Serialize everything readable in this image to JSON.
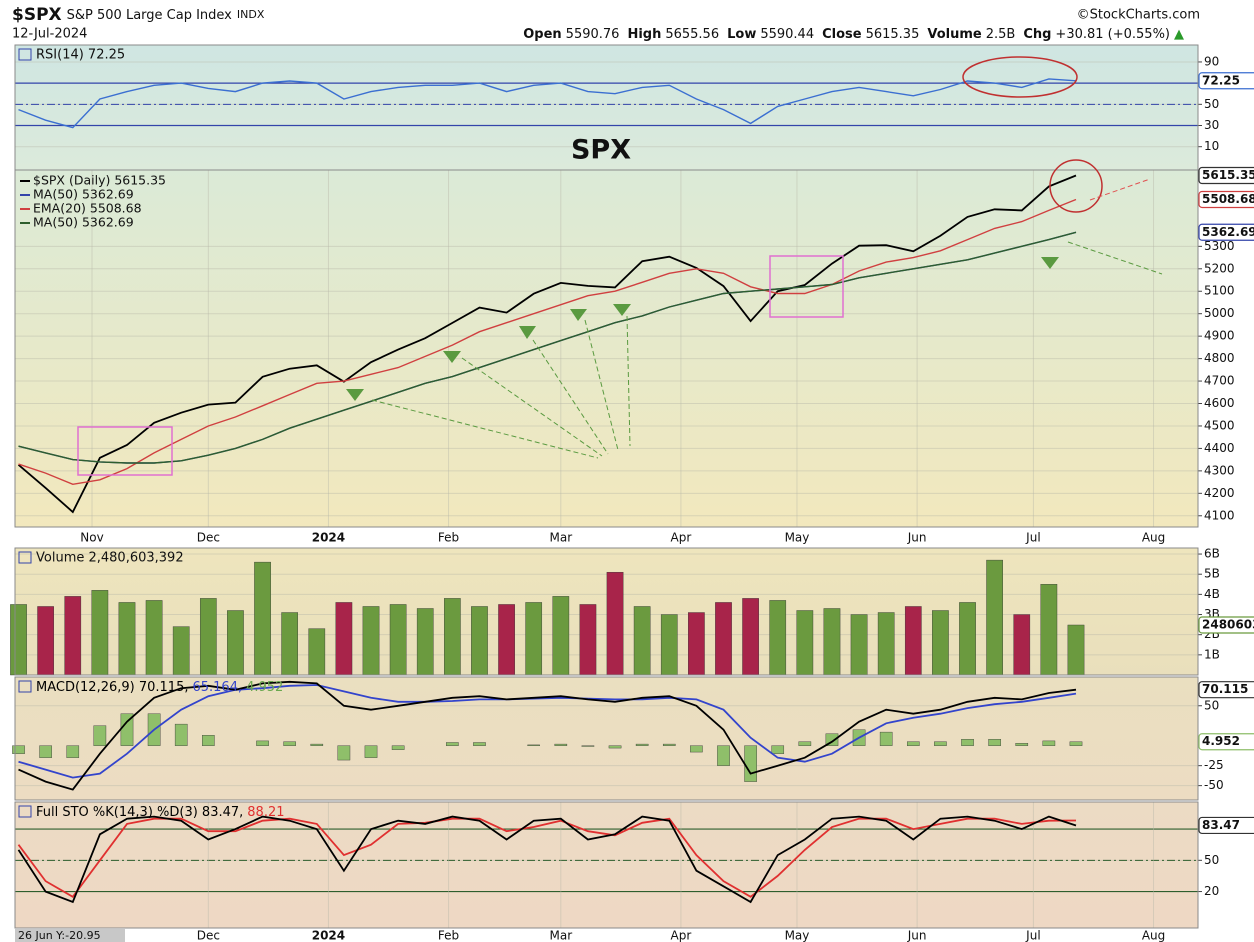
{
  "header": {
    "symbol": "$SPX",
    "name": "S&P 500 Large Cap Index",
    "exchange": "INDX",
    "date": "12-Jul-2024",
    "brand": "©StockCharts.com",
    "quote": [
      [
        "Open",
        "5590.76"
      ],
      [
        "High",
        "5655.56"
      ],
      [
        "Low",
        "5590.44"
      ],
      [
        "Close",
        "5615.35"
      ],
      [
        "Volume",
        "2.5B"
      ],
      [
        "Chg",
        "+30.81 (+0.55%)"
      ]
    ],
    "arrow": "▲"
  },
  "chart_data": [
    {
      "type": "line",
      "title": "RSI(14) 72.25",
      "xlim": [
        -0.13,
        43.5
      ],
      "ylim": [
        -12,
        106
      ],
      "yticks": [
        90,
        50,
        30,
        10
      ],
      "levels": [
        70,
        30
      ],
      "midline": 50,
      "series": [
        {
          "color": "#3b6fd1",
          "box": true,
          "values": [
            45,
            35,
            28,
            55,
            62,
            68,
            70,
            65,
            62,
            70,
            72,
            70,
            55,
            62,
            66,
            68,
            68,
            70,
            62,
            68,
            70,
            62,
            60,
            66,
            68,
            55,
            45,
            32,
            48,
            55,
            62,
            66,
            62,
            58,
            64,
            72,
            70,
            66,
            74,
            72.25
          ]
        }
      ]
    },
    {
      "type": "line",
      "annotation": "SPX",
      "xlim": [
        -0.13,
        43.5
      ],
      "ylim": [
        4050,
        5640
      ],
      "yticks": [
        4100,
        4200,
        4300,
        4400,
        4500,
        4600,
        4700,
        4800,
        4900,
        5000,
        5100,
        5200,
        5300
      ],
      "xticks": [
        {
          "value": 2.71,
          "label": "Nov"
        },
        {
          "value": 7.0,
          "label": "Dec"
        },
        {
          "value": 11.43,
          "label": "2024"
        },
        {
          "value": 15.86,
          "label": "Feb"
        },
        {
          "value": 20.0,
          "label": "Mar"
        },
        {
          "value": 24.43,
          "label": "Apr"
        },
        {
          "value": 28.71,
          "label": "May"
        },
        {
          "value": 33.14,
          "label": "Jun"
        },
        {
          "value": 37.43,
          "label": "Jul"
        },
        {
          "value": 41.86,
          "label": "Aug"
        }
      ],
      "series": [
        {
          "name": "$SPX (Daily) 5615.35",
          "color": "#000000",
          "box": true,
          "values": [
            4327,
            4224,
            4117,
            4358,
            4415,
            4514,
            4559,
            4595,
            4604,
            4719,
            4755,
            4770,
            4697,
            4784,
            4840,
            4891,
            4959,
            5027,
            5005,
            5089,
            5137,
            5124,
            5117,
            5234,
            5254,
            5204,
            5123,
            4967,
            5100,
            5128,
            5223,
            5303,
            5305,
            5278,
            5347,
            5431,
            5465,
            5460,
            5567,
            5615.35
          ]
        },
        {
          "name": "MA(50) 5362.69",
          "color": "#3344aa",
          "box": true,
          "values": [
            4410,
            4380,
            4350,
            4340,
            4335,
            4335,
            4345,
            4370,
            4400,
            4440,
            4490,
            4530,
            4570,
            4610,
            4650,
            4690,
            4720,
            4760,
            4800,
            4840,
            4880,
            4920,
            4960,
            4990,
            5030,
            5060,
            5090,
            5100,
            5110,
            5120,
            5130,
            5160,
            5180,
            5200,
            5220,
            5240,
            5270,
            5300,
            5330,
            5362.69
          ]
        },
        {
          "name": "EMA(20) 5508.68",
          "color": "#d04040",
          "box": true,
          "values": [
            4330,
            4290,
            4240,
            4260,
            4310,
            4380,
            4440,
            4500,
            4540,
            4590,
            4640,
            4690,
            4700,
            4730,
            4760,
            4810,
            4860,
            4920,
            4960,
            5000,
            5040,
            5080,
            5100,
            5140,
            5180,
            5200,
            5180,
            5120,
            5090,
            5090,
            5130,
            5190,
            5230,
            5250,
            5280,
            5330,
            5380,
            5410,
            5460,
            5508.68
          ]
        },
        {
          "name": "MA(50) 5362.69",
          "color": "#2d5e2d",
          "values": [
            4410,
            4380,
            4350,
            4340,
            4335,
            4335,
            4345,
            4370,
            4400,
            4440,
            4490,
            4530,
            4570,
            4610,
            4650,
            4690,
            4720,
            4760,
            4800,
            4840,
            4880,
            4920,
            4960,
            4990,
            5030,
            5060,
            5090,
            5100,
            5110,
            5120,
            5130,
            5160,
            5180,
            5200,
            5220,
            5240,
            5270,
            5300,
            5330,
            5362.69
          ]
        }
      ]
    },
    {
      "type": "bar",
      "title": "Volume 2,480,603,392",
      "xlim": [
        -0.13,
        43.5
      ],
      "ylim": [
        0,
        6300000000
      ],
      "yticks": [
        {
          "value": 1000000000,
          "label": "1B"
        },
        {
          "value": 2000000000,
          "label": "2B"
        },
        {
          "value": 3000000000,
          "label": "3B"
        },
        {
          "value": 4000000000,
          "label": "4B"
        },
        {
          "value": 5000000000,
          "label": "5B"
        },
        {
          "value": 6000000000,
          "label": "6B"
        }
      ],
      "series": [
        {
          "color": "#6b9a3f",
          "down_color": "#a8244a",
          "box": true,
          "values": [
            3500000000,
            3400000000,
            3900000000,
            4200000000,
            3600000000,
            3700000000,
            2400000000,
            3800000000,
            3200000000,
            5600000000,
            3100000000,
            2300000000,
            3600000000,
            3400000000,
            3500000000,
            3300000000,
            3800000000,
            3400000000,
            3500000000,
            3600000000,
            3900000000,
            3500000000,
            5100000000,
            3400000000,
            3000000000,
            3100000000,
            3600000000,
            3800000000,
            3700000000,
            3200000000,
            3300000000,
            3000000000,
            3100000000,
            3400000000,
            3200000000,
            3600000000,
            5700000000,
            3000000000,
            4500000000,
            2480603392
          ]
        }
      ]
    },
    {
      "type": "line",
      "title_parts": [
        "MACD(12,26,9) 70.115,",
        "65.164,",
        "4.952"
      ],
      "title_colors": [
        "#000000",
        "#3344cc",
        "#6aa84f"
      ],
      "xlim": [
        -0.13,
        43.5
      ],
      "ylim": [
        -68,
        86
      ],
      "yticks": [
        50,
        -25,
        -50
      ],
      "series": [
        {
          "type": "bar",
          "color": "#8fbf6a",
          "box": true,
          "values": [
            -10,
            -15,
            -15,
            25,
            40,
            40,
            27,
            13,
            0,
            6,
            5,
            2,
            -18,
            -15,
            -5,
            0,
            4,
            4,
            0,
            1,
            2,
            -1,
            -3,
            2,
            2,
            -8,
            -25,
            -45,
            -10,
            5,
            15,
            20,
            17,
            5,
            5,
            8,
            8,
            3,
            6,
            4.952
          ]
        },
        {
          "color": "#3344cc",
          "values": [
            -20,
            -30,
            -40,
            -35,
            -10,
            20,
            45,
            62,
            70,
            72,
            75,
            76,
            68,
            60,
            55,
            55,
            56,
            58,
            58,
            59,
            60,
            59,
            58,
            58,
            60,
            58,
            45,
            10,
            -15,
            -20,
            -10,
            10,
            28,
            35,
            40,
            47,
            52,
            55,
            60,
            65.164
          ]
        },
        {
          "color": "#000000",
          "box": true,
          "values": [
            -30,
            -45,
            -55,
            -10,
            30,
            60,
            72,
            75,
            70,
            78,
            80,
            78,
            50,
            45,
            50,
            55,
            60,
            62,
            58,
            60,
            62,
            58,
            55,
            60,
            62,
            50,
            20,
            -35,
            -25,
            -15,
            5,
            30,
            45,
            40,
            45,
            55,
            60,
            58,
            66,
            70.115
          ]
        }
      ]
    },
    {
      "type": "line",
      "title_parts": [
        "Full STO %K(14,3) %D(3) 83.47,",
        "88.21"
      ],
      "title_colors": [
        "#000000",
        "#e03030"
      ],
      "cursor_label": "26 Jun Y:-20.95",
      "xlim": [
        -0.13,
        43.5
      ],
      "ylim": [
        -15,
        106
      ],
      "yticks": [
        50,
        20
      ],
      "levels": [
        80,
        20
      ],
      "midline": 50,
      "xticks": [
        {
          "value": 7.0,
          "label": "Dec"
        },
        {
          "value": 11.43,
          "label": "2024"
        },
        {
          "value": 15.86,
          "label": "Feb"
        },
        {
          "value": 20.0,
          "label": "Mar"
        },
        {
          "value": 24.43,
          "label": "Apr"
        },
        {
          "value": 28.71,
          "label": "May"
        },
        {
          "value": 33.14,
          "label": "Jun"
        },
        {
          "value": 37.43,
          "label": "Jul"
        },
        {
          "value": 41.86,
          "label": "Aug"
        }
      ],
      "series": [
        {
          "color": "#e03030",
          "values": [
            65,
            30,
            15,
            50,
            85,
            90,
            90,
            78,
            78,
            88,
            90,
            85,
            55,
            65,
            85,
            86,
            90,
            90,
            78,
            82,
            88,
            78,
            74,
            86,
            90,
            55,
            30,
            15,
            35,
            60,
            82,
            90,
            90,
            80,
            85,
            90,
            90,
            85,
            88,
            88.21
          ]
        },
        {
          "color": "#000000",
          "box": true,
          "values": [
            60,
            20,
            10,
            75,
            90,
            92,
            88,
            70,
            80,
            92,
            88,
            80,
            40,
            80,
            88,
            85,
            92,
            88,
            70,
            88,
            90,
            70,
            75,
            92,
            88,
            40,
            25,
            10,
            55,
            70,
            90,
            92,
            88,
            70,
            90,
            92,
            88,
            80,
            92,
            83.47
          ]
        }
      ]
    }
  ]
}
